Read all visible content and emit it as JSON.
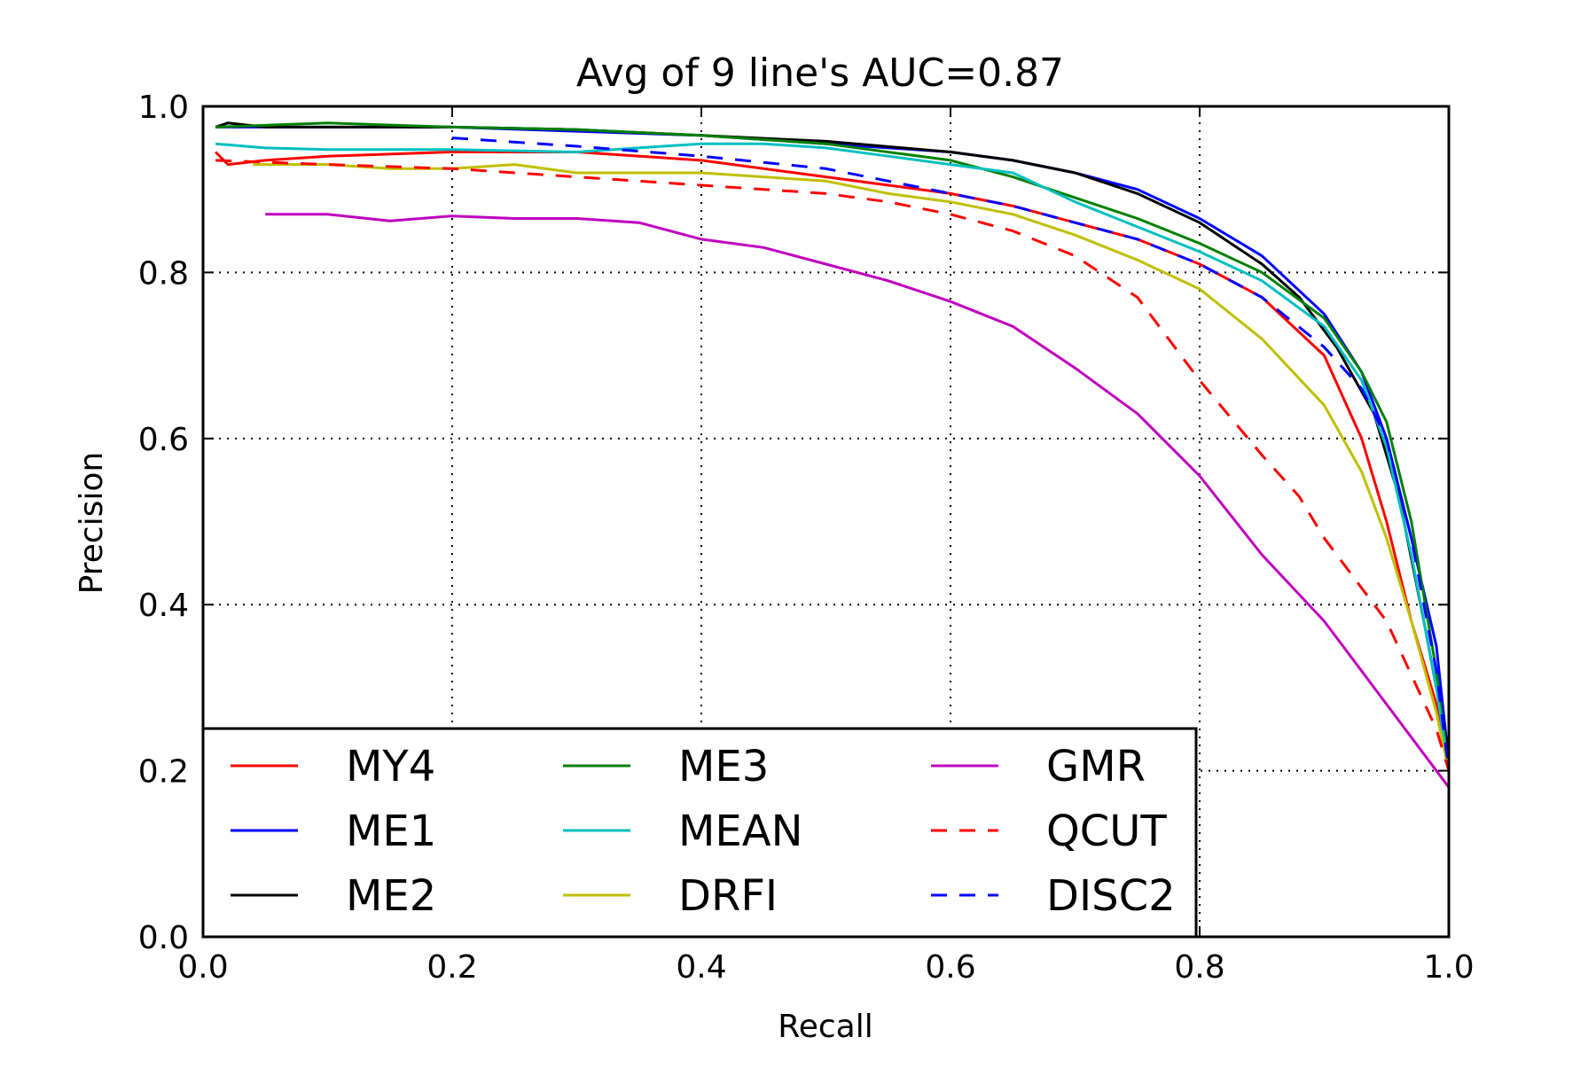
{
  "chart_data": {
    "type": "line",
    "title": "Avg of 9 line's AUC=0.87",
    "xlabel": "Recall",
    "ylabel": "Precision",
    "xlim": [
      0.0,
      1.0
    ],
    "ylim": [
      0.0,
      1.0
    ],
    "xticks": [
      0.0,
      0.2,
      0.4,
      0.6,
      0.8,
      1.0
    ],
    "yticks": [
      0.0,
      0.2,
      0.4,
      0.6,
      0.8,
      1.0
    ],
    "xtick_labels": [
      "0.0",
      "0.2",
      "0.4",
      "0.6",
      "0.8",
      "1.0"
    ],
    "ytick_labels": [
      "0.0",
      "0.2",
      "0.4",
      "0.6",
      "0.8",
      "1.0"
    ],
    "grid": true,
    "grid_style": "dotted",
    "legend_position": "lower-left",
    "legend_columns": 3,
    "series": [
      {
        "name": "MY4",
        "color": "#ff0000",
        "style": "solid",
        "x": [
          0.01,
          0.02,
          0.05,
          0.1,
          0.2,
          0.3,
          0.4,
          0.5,
          0.55,
          0.6,
          0.65,
          0.7,
          0.75,
          0.8,
          0.85,
          0.9,
          0.93,
          0.95,
          0.97,
          0.99,
          1.0
        ],
        "y": [
          0.945,
          0.93,
          0.935,
          0.94,
          0.945,
          0.945,
          0.935,
          0.915,
          0.905,
          0.895,
          0.88,
          0.86,
          0.84,
          0.81,
          0.77,
          0.7,
          0.6,
          0.5,
          0.38,
          0.28,
          0.2
        ]
      },
      {
        "name": "ME1",
        "color": "#0000ff",
        "style": "solid",
        "x": [
          0.01,
          0.1,
          0.2,
          0.3,
          0.4,
          0.5,
          0.6,
          0.65,
          0.7,
          0.75,
          0.8,
          0.85,
          0.9,
          0.93,
          0.95,
          0.97,
          0.99,
          1.0
        ],
        "y": [
          0.975,
          0.975,
          0.975,
          0.97,
          0.965,
          0.955,
          0.945,
          0.935,
          0.92,
          0.9,
          0.865,
          0.82,
          0.75,
          0.68,
          0.6,
          0.48,
          0.35,
          0.21
        ]
      },
      {
        "name": "ME2",
        "color": "#000000",
        "style": "solid",
        "x": [
          0.01,
          0.02,
          0.05,
          0.1,
          0.2,
          0.3,
          0.4,
          0.5,
          0.6,
          0.65,
          0.7,
          0.75,
          0.8,
          0.85,
          0.88,
          0.91,
          0.94,
          0.96,
          0.98,
          1.0
        ],
        "y": [
          0.975,
          0.98,
          0.975,
          0.975,
          0.975,
          0.972,
          0.965,
          0.958,
          0.945,
          0.935,
          0.92,
          0.895,
          0.86,
          0.81,
          0.77,
          0.71,
          0.63,
          0.53,
          0.38,
          0.22
        ]
      },
      {
        "name": "ME3",
        "color": "#008000",
        "style": "solid",
        "x": [
          0.01,
          0.1,
          0.2,
          0.3,
          0.4,
          0.5,
          0.6,
          0.65,
          0.7,
          0.75,
          0.8,
          0.85,
          0.9,
          0.93,
          0.95,
          0.97,
          0.99,
          1.0
        ],
        "y": [
          0.975,
          0.98,
          0.975,
          0.972,
          0.965,
          0.955,
          0.935,
          0.915,
          0.89,
          0.865,
          0.835,
          0.8,
          0.745,
          0.68,
          0.62,
          0.5,
          0.32,
          0.2
        ]
      },
      {
        "name": "MEAN",
        "color": "#00bfbf",
        "style": "solid",
        "x": [
          0.01,
          0.05,
          0.1,
          0.2,
          0.3,
          0.4,
          0.45,
          0.5,
          0.55,
          0.6,
          0.65,
          0.7,
          0.75,
          0.8,
          0.85,
          0.9,
          0.93,
          0.95,
          0.97,
          0.99,
          1.0
        ],
        "y": [
          0.955,
          0.95,
          0.948,
          0.948,
          0.945,
          0.955,
          0.955,
          0.95,
          0.94,
          0.93,
          0.92,
          0.885,
          0.855,
          0.825,
          0.79,
          0.735,
          0.67,
          0.59,
          0.46,
          0.3,
          0.2
        ]
      },
      {
        "name": "DRFI",
        "color": "#bfbf00",
        "style": "solid",
        "x": [
          0.04,
          0.1,
          0.15,
          0.2,
          0.25,
          0.3,
          0.4,
          0.5,
          0.55,
          0.6,
          0.65,
          0.7,
          0.75,
          0.8,
          0.85,
          0.9,
          0.93,
          0.95,
          0.97,
          0.99,
          1.0
        ],
        "y": [
          0.93,
          0.93,
          0.925,
          0.925,
          0.93,
          0.92,
          0.92,
          0.91,
          0.895,
          0.885,
          0.87,
          0.845,
          0.815,
          0.78,
          0.72,
          0.64,
          0.56,
          0.48,
          0.38,
          0.27,
          0.2
        ]
      },
      {
        "name": "GMR",
        "color": "#bf00bf",
        "style": "solid",
        "x": [
          0.05,
          0.1,
          0.15,
          0.2,
          0.25,
          0.3,
          0.35,
          0.4,
          0.45,
          0.5,
          0.55,
          0.6,
          0.65,
          0.7,
          0.75,
          0.8,
          0.85,
          0.9,
          0.95,
          1.0
        ],
        "y": [
          0.87,
          0.87,
          0.862,
          0.868,
          0.865,
          0.865,
          0.86,
          0.84,
          0.83,
          0.81,
          0.79,
          0.765,
          0.735,
          0.685,
          0.63,
          0.555,
          0.46,
          0.38,
          0.28,
          0.18
        ]
      },
      {
        "name": "QCUT",
        "color": "#ff0000",
        "style": "dashed",
        "x": [
          0.01,
          0.1,
          0.2,
          0.3,
          0.4,
          0.5,
          0.55,
          0.6,
          0.65,
          0.7,
          0.75,
          0.78,
          0.8,
          0.85,
          0.88,
          0.9,
          0.95,
          0.99,
          1.0
        ],
        "y": [
          0.935,
          0.93,
          0.925,
          0.915,
          0.905,
          0.895,
          0.885,
          0.87,
          0.85,
          0.82,
          0.77,
          0.71,
          0.67,
          0.58,
          0.53,
          0.48,
          0.38,
          0.25,
          0.2
        ]
      },
      {
        "name": "DISC2",
        "color": "#0000ff",
        "style": "dashed",
        "x": [
          0.2,
          0.3,
          0.4,
          0.5,
          0.55,
          0.6,
          0.65,
          0.7,
          0.75,
          0.8,
          0.85,
          0.9,
          0.93,
          0.95,
          0.97,
          0.99,
          1.0
        ],
        "y": [
          0.962,
          0.952,
          0.94,
          0.925,
          0.91,
          0.895,
          0.88,
          0.86,
          0.84,
          0.81,
          0.77,
          0.71,
          0.66,
          0.6,
          0.48,
          0.32,
          0.2
        ]
      }
    ]
  }
}
